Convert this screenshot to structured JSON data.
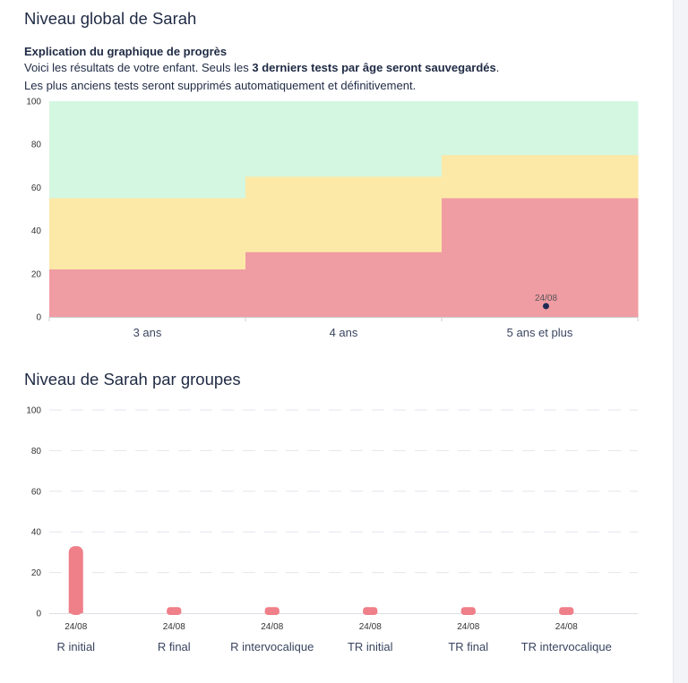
{
  "header": {
    "title": "Niveau global de Sarah"
  },
  "explanation": {
    "title": "Explication du graphique de progrès",
    "line1_before": "Voici les résultats de votre enfant. Seuls les ",
    "line1_bold": "3 derniers tests par âge seront sauvegardés",
    "line1_after": ".",
    "line2": "Les plus anciens tests seront supprimés automatiquement et définitivement."
  },
  "groups_section": {
    "title": "Niveau de Sarah par groupes"
  },
  "colors": {
    "green_zone": "#d4f7e1",
    "yellow_zone": "#fce9a8",
    "red_zone": "#f09ca3",
    "bar": "#ef7f89",
    "point": "#1f2a55",
    "grid": "#e4e6ec"
  },
  "chart_data": [
    {
      "type": "area",
      "ylim": [
        0,
        100
      ],
      "yticks": [
        0,
        20,
        40,
        60,
        80,
        100
      ],
      "categories": [
        "3 ans",
        "4 ans",
        "5 ans et plus"
      ],
      "zones": [
        {
          "name": "red",
          "upper": [
            22,
            30,
            55
          ]
        },
        {
          "name": "yellow",
          "upper": [
            55,
            65,
            75
          ]
        },
        {
          "name": "green",
          "upper": [
            100,
            100,
            100
          ]
        }
      ],
      "points": [
        {
          "category": "5 ans et plus",
          "value": 5,
          "label": "24/08"
        }
      ]
    },
    {
      "type": "bar",
      "ylim": [
        0,
        100
      ],
      "yticks": [
        0,
        20,
        40,
        60,
        80,
        100
      ],
      "grid": true,
      "categories": [
        "R initial",
        "R final",
        "R intervocalique",
        "TR initial",
        "TR final",
        "TR intervocalique"
      ],
      "series": [
        {
          "values": [
            33,
            3,
            3,
            3,
            3,
            3
          ]
        }
      ],
      "bar_labels": [
        "24/08",
        "24/08",
        "24/08",
        "24/08",
        "24/08",
        "24/08"
      ]
    }
  ]
}
